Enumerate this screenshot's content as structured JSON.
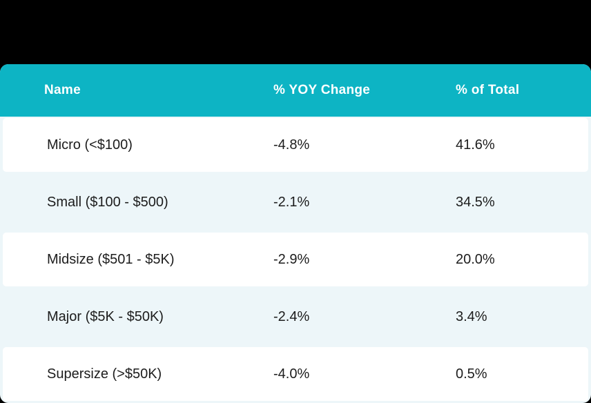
{
  "colors": {
    "header_background": "#0db4c4",
    "header_text": "#ffffff",
    "row_background": "#ffffff",
    "row_alt_background": "#edf6f9",
    "cell_text": "#1c1c1c",
    "page_background": "#000000"
  },
  "table": {
    "header": {
      "columns": [
        "Name",
        "% YOY Change",
        "% of Total"
      ]
    },
    "rows": [
      {
        "name": "Micro (<$100)",
        "yoy_change": "-4.8%",
        "pct_of_total": "41.6%"
      },
      {
        "name": "Small ($100 - $500)",
        "yoy_change": "-2.1%",
        "pct_of_total": "34.5%"
      },
      {
        "name": "Midsize ($501 - $5K)",
        "yoy_change": "-2.9%",
        "pct_of_total": "20.0%"
      },
      {
        "name": "Major ($5K - $50K)",
        "yoy_change": "-2.4%",
        "pct_of_total": "3.4%"
      },
      {
        "name": "Supersize (>$50K)",
        "yoy_change": "-4.0%",
        "pct_of_total": "0.5%"
      }
    ]
  }
}
